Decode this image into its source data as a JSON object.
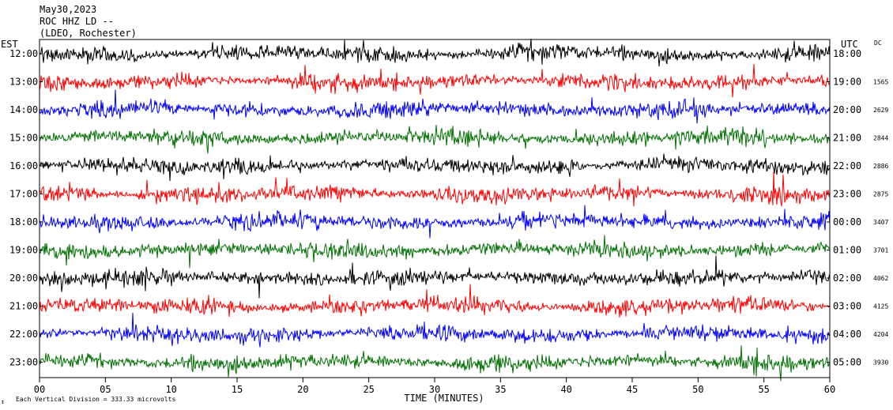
{
  "header": {
    "date": "May30,2023",
    "station": "ROC HHZ LD --",
    "location": "(LDEO, Rochester)"
  },
  "left_axis_title": "EST",
  "right_axis_title": "UTC",
  "dc_title": "DC",
  "footer": {
    "xlabel": "TIME (MINUTES)",
    "scale_note": "Each Vertical Division =  333.33 microvolts"
  },
  "colors": {
    "series": [
      "#000000",
      "#ff0000",
      "#0000ff",
      "#007000"
    ]
  },
  "chart_data": {
    "type": "line",
    "x_range": [
      0,
      60
    ],
    "x_ticks": [
      "00",
      "05",
      "10",
      "15",
      "20",
      "25",
      "30",
      "35",
      "40",
      "45",
      "50",
      "55",
      "60"
    ],
    "rows": [
      {
        "est": "12:00",
        "utc": "18:00",
        "dc": "",
        "color": "#000000"
      },
      {
        "est": "13:00",
        "utc": "19:00",
        "dc": "1565",
        "color": "#ff0000"
      },
      {
        "est": "14:00",
        "utc": "20:00",
        "dc": "2629",
        "color": "#0000ff"
      },
      {
        "est": "15:00",
        "utc": "21:00",
        "dc": "2844",
        "color": "#007000"
      },
      {
        "est": "16:00",
        "utc": "22:00",
        "dc": "2886",
        "color": "#000000"
      },
      {
        "est": "17:00",
        "utc": "23:00",
        "dc": "2875",
        "color": "#ff0000"
      },
      {
        "est": "18:00",
        "utc": "00:00",
        "dc": "3407",
        "color": "#0000ff"
      },
      {
        "est": "19:00",
        "utc": "01:00",
        "dc": "3701",
        "color": "#007000"
      },
      {
        "est": "20:00",
        "utc": "02:00",
        "dc": "4062",
        "color": "#000000"
      },
      {
        "est": "21:00",
        "utc": "03:00",
        "dc": "4125",
        "color": "#ff0000"
      },
      {
        "est": "22:00",
        "utc": "04:00",
        "dc": "4204",
        "color": "#0000ff"
      },
      {
        "est": "23:00",
        "utc": "05:00",
        "dc": "3930",
        "color": "#007000"
      }
    ]
  }
}
